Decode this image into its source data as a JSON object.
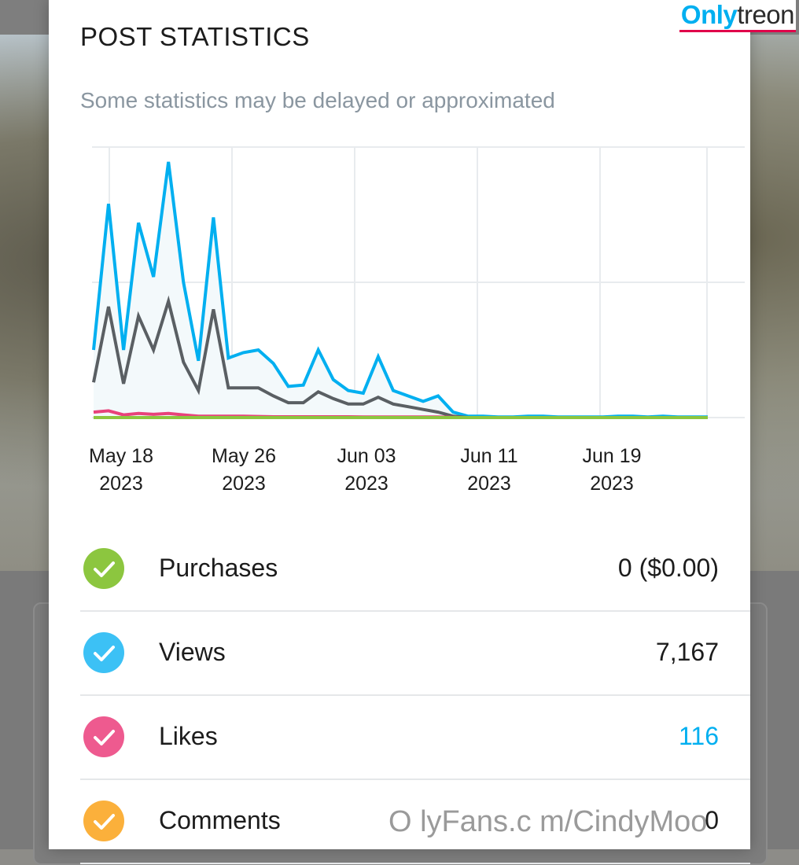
{
  "dialog": {
    "title": "POST STATISTICS",
    "subtitle": "Some statistics may be delayed or approximated"
  },
  "chart_data": {
    "type": "line",
    "x_tick_labels": [
      {
        "line1": "May 18",
        "line2": "2023"
      },
      {
        "line1": "May 26",
        "line2": "2023"
      },
      {
        "line1": "Jun 03",
        "line2": "2023"
      },
      {
        "line1": "Jun 11",
        "line2": "2023"
      },
      {
        "line1": "Jun 19",
        "line2": "2023"
      }
    ],
    "x_range": [
      "2023-05-17",
      "2023-06-27"
    ],
    "y_range": [
      0,
      1000
    ],
    "grid": true,
    "legend": "none",
    "series": [
      {
        "key": "views",
        "color": "#00aff0",
        "fill": "#f3f9fb",
        "values": [
          250,
          790,
          250,
          720,
          520,
          945,
          500,
          210,
          740,
          220,
          240,
          250,
          200,
          115,
          120,
          250,
          140,
          100,
          90,
          225,
          100,
          80,
          60,
          80,
          20,
          5,
          5,
          2,
          2,
          5,
          5,
          2,
          2,
          2,
          2,
          5,
          5,
          2,
          5,
          2,
          2,
          2
        ]
      },
      {
        "key": "comments_trend",
        "color": "#5a5f63",
        "fill": "none",
        "values": [
          130,
          410,
          125,
          375,
          250,
          430,
          205,
          100,
          400,
          110,
          110,
          110,
          80,
          55,
          55,
          95,
          70,
          50,
          50,
          75,
          50,
          40,
          30,
          20,
          5,
          0,
          0,
          0,
          0,
          0,
          0,
          0,
          0,
          0,
          0,
          0,
          0,
          0,
          0,
          0,
          0,
          0
        ]
      },
      {
        "key": "likes",
        "color": "#e8427a",
        "fill": "none",
        "values": [
          20,
          25,
          10,
          15,
          12,
          15,
          10,
          5,
          5,
          5,
          5,
          4,
          3,
          3,
          3,
          3,
          3,
          3,
          2,
          2,
          2,
          2,
          2,
          2,
          1,
          0,
          0,
          0,
          0,
          0,
          0,
          0,
          0,
          0,
          0,
          0,
          0,
          0,
          0,
          0,
          0,
          0
        ]
      },
      {
        "key": "purchases",
        "color": "#8cc63f",
        "fill": "none",
        "values": [
          0,
          0,
          0,
          0,
          0,
          0,
          0,
          0,
          0,
          0,
          0,
          0,
          0,
          0,
          0,
          0,
          0,
          0,
          0,
          0,
          0,
          0,
          0,
          0,
          0,
          0,
          0,
          0,
          0,
          0,
          0,
          0,
          0,
          0,
          0,
          0,
          0,
          0,
          0,
          0,
          0,
          0
        ]
      }
    ]
  },
  "stats": [
    {
      "label": "Purchases",
      "value": "0 ($0.00)",
      "color": "#8cc63f",
      "icon": "check-circle-icon",
      "link": false
    },
    {
      "label": "Views",
      "value": "7,167",
      "color": "#3cc1f5",
      "icon": "check-circle-icon",
      "link": false
    },
    {
      "label": "Likes",
      "value": "116",
      "color": "#ee5a8f",
      "icon": "check-circle-icon",
      "link": true
    },
    {
      "label": "Comments",
      "value": "0",
      "color": "#fbb03b",
      "icon": "check-circle-icon",
      "link": false
    }
  ],
  "brand": {
    "only": "Only",
    "treon": "treon"
  },
  "watermark": "O lyFans.c m/CindyMoo"
}
